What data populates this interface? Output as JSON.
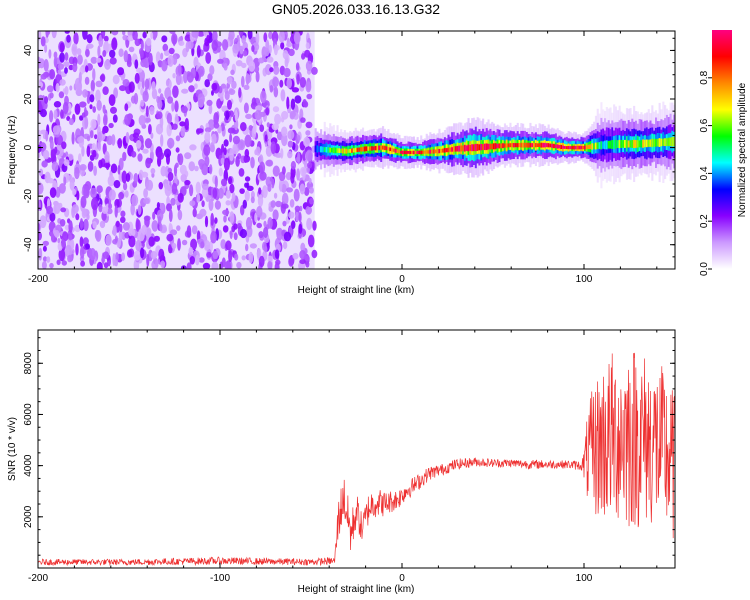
{
  "title": "GN05.2026.033.16.13.G32",
  "chart_data": [
    {
      "type": "heatmap",
      "xlabel": "Height of straight line (km)",
      "ylabel": "Frequency (Hz)",
      "xlim": [
        -200,
        150
      ],
      "ylim": [
        -50,
        48
      ],
      "xticks": [
        -200,
        -100,
        0,
        100
      ],
      "yticks": [
        -40,
        -20,
        0,
        20,
        40
      ],
      "noise_region": {
        "x_range": [
          -200,
          -48
        ],
        "y_range": [
          -50,
          48
        ],
        "level": 0.15
      },
      "ridge": {
        "x": [
          -48,
          -40,
          -30,
          -20,
          -10,
          0,
          10,
          20,
          30,
          40,
          50,
          60,
          70,
          80,
          90,
          100,
          110,
          120,
          130,
          140,
          150
        ],
        "y": [
          -0.5,
          -1,
          -1.5,
          -0.5,
          0,
          -2,
          -2,
          -1.5,
          -0.5,
          0,
          0.5,
          1,
          1,
          1,
          0,
          0,
          1,
          1.5,
          1.5,
          2,
          2.5
        ],
        "amplitude": [
          0.35,
          0.55,
          0.7,
          0.8,
          0.85,
          0.9,
          0.9,
          0.85,
          0.9,
          0.95,
          0.9,
          0.9,
          0.85,
          0.9,
          0.95,
          0.9,
          0.45,
          0.6,
          0.65,
          0.6,
          0.55
        ],
        "halfwidth_hz": [
          3,
          2.5,
          2,
          2,
          2,
          1.5,
          1.5,
          2,
          2.5,
          3,
          2.5,
          2,
          2,
          2,
          1.5,
          1.5,
          4,
          3.5,
          3.5,
          3.5,
          4
        ]
      },
      "colorbar": {
        "label": "Normalized spectral amplitude",
        "range": [
          0,
          1
        ],
        "ticks": [
          "0.0",
          "0.2",
          "0.4",
          "0.6",
          "0.8"
        ],
        "colors": [
          "#ffffff",
          "#cc99ff",
          "#8800ff",
          "#0000ff",
          "#00ffff",
          "#00ff00",
          "#ffff00",
          "#ff8800",
          "#ff0000",
          "#ff0080"
        ]
      }
    },
    {
      "type": "line",
      "xlabel": "Height of straight line (km)",
      "ylabel": "SNR (10 * v/v)",
      "xlim": [
        -200,
        150
      ],
      "ylim": [
        0,
        9300
      ],
      "xticks": [
        -200,
        -100,
        0,
        100
      ],
      "yticks": [
        2000,
        4000,
        6000,
        8000
      ],
      "color": "#ee3030",
      "series": [
        {
          "x": [
            -200,
            -150,
            -100,
            -70,
            -50,
            -37,
            -35,
            -32,
            -28,
            -25,
            -22,
            -18,
            -14,
            -10,
            -6,
            -2,
            2,
            8,
            15,
            22,
            30,
            40,
            50,
            60,
            70,
            80,
            90,
            99,
            102,
            105,
            110,
            115,
            120,
            125,
            130,
            135,
            140,
            145,
            150
          ],
          "y": [
            230,
            230,
            280,
            250,
            240,
            280,
            1900,
            2800,
            1300,
            2300,
            1500,
            2400,
            2600,
            2500,
            2600,
            2700,
            3000,
            3300,
            3700,
            3850,
            4050,
            4150,
            4100,
            4100,
            4050,
            4050,
            4050,
            4000,
            4300,
            4600,
            4900,
            5100,
            5200,
            5200,
            5100,
            5000,
            4800,
            4500,
            3800
          ],
          "noise_amp": [
            120,
            120,
            150,
            130,
            130,
            150,
            900,
            900,
            900,
            700,
            600,
            650,
            600,
            500,
            450,
            400,
            380,
            330,
            280,
            230,
            220,
            180,
            170,
            170,
            180,
            170,
            160,
            200,
            1800,
            2600,
            3200,
            3400,
            3500,
            3800,
            3600,
            3400,
            3300,
            3300,
            3000
          ]
        }
      ]
    }
  ]
}
